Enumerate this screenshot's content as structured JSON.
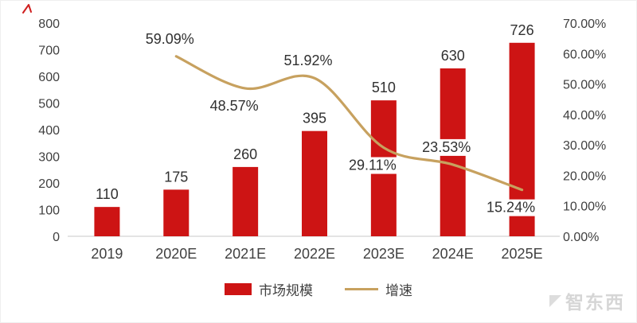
{
  "chart_data": {
    "type": "combo-bar-line",
    "title": "",
    "categories": [
      "2019",
      "2020E",
      "2021E",
      "2022E",
      "2023E",
      "2024E",
      "2025E"
    ],
    "series": [
      {
        "name": "市场规模",
        "type": "bar",
        "color": "#cd1414",
        "values": [
          110,
          175,
          260,
          395,
          510,
          630,
          726
        ],
        "labels": [
          "110",
          "175",
          "260",
          "395",
          "510",
          "630",
          "726"
        ]
      },
      {
        "name": "增速",
        "type": "line",
        "color": "#c7a15f",
        "values": [
          null,
          59.09,
          48.57,
          51.92,
          29.11,
          23.53,
          15.24
        ],
        "labels": [
          null,
          "59.09%",
          "48.57%",
          "51.92%",
          "29.11%",
          "23.53%",
          "15.24%"
        ],
        "label_positions": [
          null,
          "above",
          "below",
          "above",
          "below",
          "above",
          "below"
        ]
      }
    ],
    "left_axis": {
      "min": 0,
      "max": 800,
      "step": 100,
      "tick_labels": [
        "0",
        "100",
        "200",
        "300",
        "400",
        "500",
        "600",
        "700",
        "800"
      ]
    },
    "right_axis": {
      "min": 0,
      "max": 70,
      "step": 10,
      "tick_labels": [
        "0.00%",
        "10.00%",
        "20.00%",
        "30.00%",
        "40.00%",
        "50.00%",
        "60.00%",
        "70.00%"
      ]
    },
    "grid": false,
    "legend_position": "bottom-center",
    "legend": [
      {
        "label": "市场规模",
        "swatch": "bar",
        "color": "#cd1414"
      },
      {
        "label": "增速",
        "swatch": "line",
        "color": "#c7a15f"
      }
    ]
  },
  "watermark": {
    "text": "智东西"
  },
  "colors": {
    "bar": "#cd1414",
    "line": "#c7a15f",
    "axis_text": "#404040",
    "value_text": "#303030",
    "axis_line": "#c9c9c9",
    "watermark": "#d6d6d6",
    "corner_mark": "#cf1f1f"
  }
}
